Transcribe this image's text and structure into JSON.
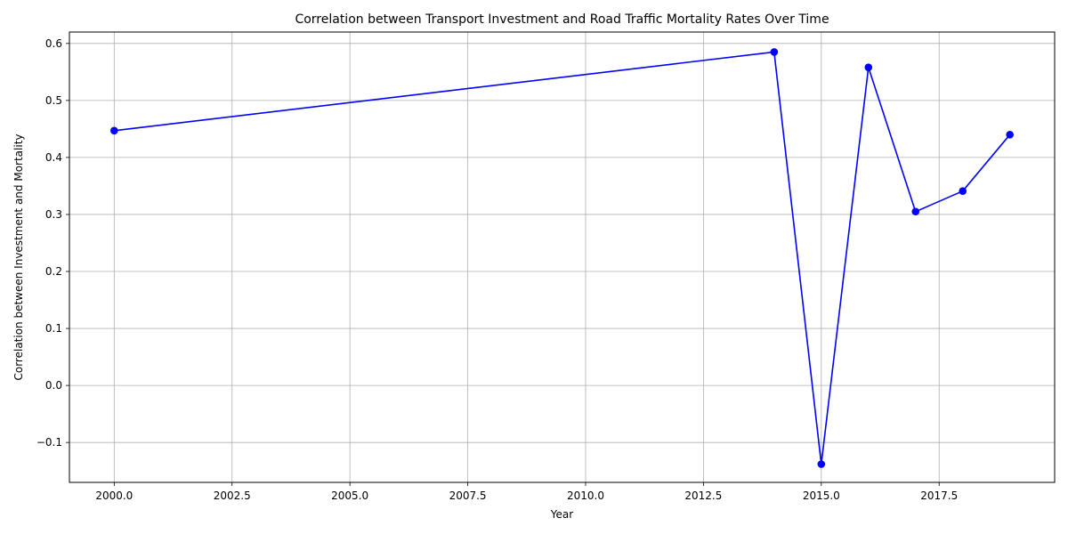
{
  "chart_data": {
    "type": "line",
    "title": "Correlation between Transport Investment and Road Traffic Mortality Rates Over Time",
    "xlabel": "Year",
    "ylabel": "Correlation between Investment and Mortality",
    "xlim": [
      1999.05,
      2019.95
    ],
    "ylim": [
      -0.17,
      0.62
    ],
    "xticks": [
      "2000.0",
      "2002.5",
      "2005.0",
      "2007.5",
      "2010.0",
      "2012.5",
      "2015.0",
      "2017.5"
    ],
    "xtick_values": [
      2000,
      2002.5,
      2005,
      2007.5,
      2010,
      2012.5,
      2015,
      2017.5
    ],
    "yticks": [
      "−0.1",
      "0.0",
      "0.1",
      "0.2",
      "0.3",
      "0.4",
      "0.5",
      "0.6"
    ],
    "ytick_values": [
      -0.1,
      0.0,
      0.1,
      0.2,
      0.3,
      0.4,
      0.5,
      0.6
    ],
    "grid": true,
    "series": [
      {
        "color": "#0000ff",
        "marker": "circle",
        "x": [
          2000,
          2014,
          2015,
          2016,
          2017,
          2018,
          2019
        ],
        "y": [
          0.447,
          0.585,
          -0.138,
          0.558,
          0.305,
          0.341,
          0.44
        ]
      }
    ]
  }
}
